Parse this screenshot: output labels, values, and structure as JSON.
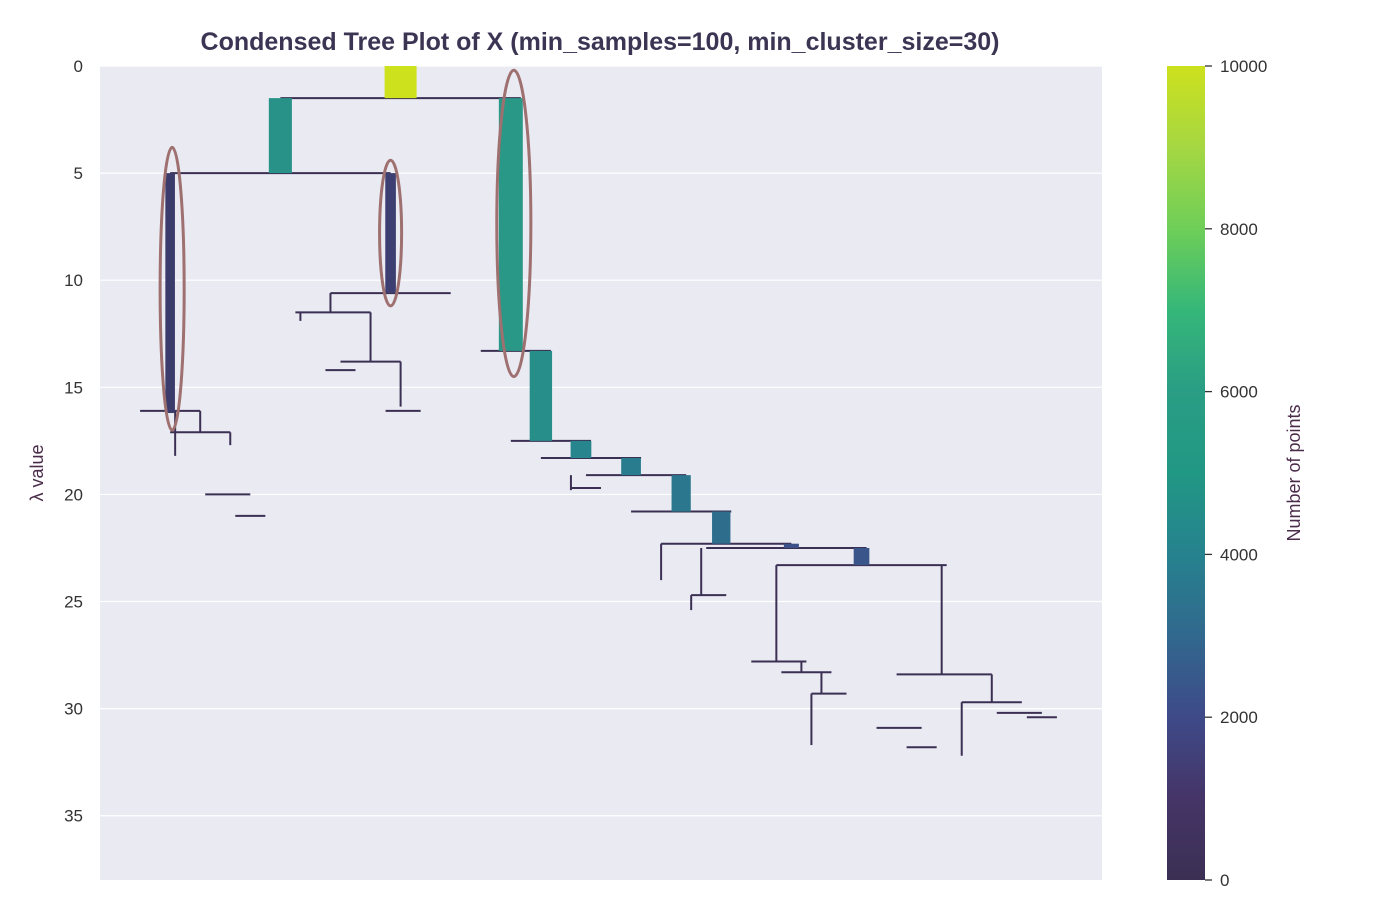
{
  "chart_data": {
    "type": "condensed-tree",
    "title": "Condensed Tree Plot of X (min_samples=100, min_cluster_size=30)",
    "ylabel": "λ value",
    "colorbar_label": "Number of points",
    "ylim": [
      0,
      38
    ],
    "y_inverted": true,
    "y_ticks": [
      0,
      5,
      10,
      15,
      20,
      25,
      30,
      35
    ],
    "colorbar_ticks": [
      0,
      2000,
      4000,
      6000,
      8000,
      10000
    ],
    "colorbar_range": [
      0,
      10000
    ],
    "colormap": "viridis",
    "grid": true,
    "background": "#eaeaf2",
    "highlight_color": "#9e7070",
    "branches": [
      {
        "x": 0.3,
        "top": 0,
        "bottom": 1.5,
        "points": 10000
      },
      {
        "x": 0.18,
        "top": 1.5,
        "bottom": 5.0,
        "points": 5200
      },
      {
        "x": 0.41,
        "top": 1.5,
        "bottom": 13.3,
        "points": 5600
      },
      {
        "x": 0.07,
        "top": 5.0,
        "bottom": 16.2,
        "points": 900
      },
      {
        "x": 0.29,
        "top": 5.0,
        "bottom": 10.6,
        "points": 1100
      },
      {
        "x": 0.44,
        "top": 13.3,
        "bottom": 17.5,
        "points": 4900
      },
      {
        "x": 0.48,
        "top": 17.5,
        "bottom": 18.3,
        "points": 4200
      },
      {
        "x": 0.53,
        "top": 18.3,
        "bottom": 19.1,
        "points": 3800
      },
      {
        "x": 0.58,
        "top": 19.1,
        "bottom": 20.8,
        "points": 3600
      },
      {
        "x": 0.62,
        "top": 20.8,
        "bottom": 22.3,
        "points": 3300
      },
      {
        "x": 0.76,
        "top": 22.5,
        "bottom": 23.3,
        "points": 2400
      },
      {
        "x": 0.69,
        "top": 22.3,
        "bottom": 22.5,
        "points": 2200
      }
    ],
    "leaves": [
      {
        "x": 0.075,
        "top": 16.1,
        "bottom": 18.2
      },
      {
        "x": 0.1,
        "top": 16.1,
        "bottom": 17.1
      },
      {
        "x": 0.13,
        "top": 17.1,
        "bottom": 17.7
      },
      {
        "x": 0.27,
        "top": 11.5,
        "bottom": 13.8
      },
      {
        "x": 0.23,
        "top": 10.6,
        "bottom": 11.5
      },
      {
        "x": 0.3,
        "top": 13.8,
        "bottom": 15.9
      },
      {
        "x": 0.2,
        "top": 11.5,
        "bottom": 11.9
      },
      {
        "x": 0.47,
        "top": 19.1,
        "bottom": 19.8
      },
      {
        "x": 0.56,
        "top": 22.3,
        "bottom": 24.0
      },
      {
        "x": 0.6,
        "top": 22.5,
        "bottom": 24.7
      },
      {
        "x": 0.59,
        "top": 24.7,
        "bottom": 25.4
      },
      {
        "x": 0.675,
        "top": 23.3,
        "bottom": 27.8
      },
      {
        "x": 0.84,
        "top": 23.3,
        "bottom": 28.4
      },
      {
        "x": 0.7,
        "top": 27.8,
        "bottom": 28.3
      },
      {
        "x": 0.72,
        "top": 28.3,
        "bottom": 29.3
      },
      {
        "x": 0.71,
        "top": 29.3,
        "bottom": 31.7
      },
      {
        "x": 0.89,
        "top": 28.4,
        "bottom": 29.7
      },
      {
        "x": 0.86,
        "top": 29.7,
        "bottom": 32.2
      }
    ],
    "splits": [
      {
        "y": 1.5,
        "x1": 0.18,
        "x2": 0.42
      },
      {
        "y": 5.0,
        "x1": 0.07,
        "x2": 0.29
      },
      {
        "y": 10.6,
        "x1": 0.23,
        "x2": 0.35
      },
      {
        "y": 11.5,
        "x1": 0.195,
        "x2": 0.27
      },
      {
        "y": 13.8,
        "x1": 0.24,
        "x2": 0.3
      },
      {
        "y": 14.2,
        "x1": 0.225,
        "x2": 0.255
      },
      {
        "y": 16.1,
        "x1": 0.04,
        "x2": 0.1
      },
      {
        "y": 16.1,
        "x1": 0.285,
        "x2": 0.32
      },
      {
        "y": 17.1,
        "x1": 0.07,
        "x2": 0.13
      },
      {
        "y": 20.0,
        "x1": 0.105,
        "x2": 0.15
      },
      {
        "y": 21.0,
        "x1": 0.135,
        "x2": 0.165
      },
      {
        "y": 13.3,
        "x1": 0.38,
        "x2": 0.45
      },
      {
        "y": 17.5,
        "x1": 0.41,
        "x2": 0.49
      },
      {
        "y": 18.3,
        "x1": 0.44,
        "x2": 0.54
      },
      {
        "y": 19.1,
        "x1": 0.485,
        "x2": 0.585
      },
      {
        "y": 19.7,
        "x1": 0.47,
        "x2": 0.5
      },
      {
        "y": 20.8,
        "x1": 0.53,
        "x2": 0.63
      },
      {
        "y": 22.3,
        "x1": 0.56,
        "x2": 0.69
      },
      {
        "y": 22.5,
        "x1": 0.605,
        "x2": 0.765
      },
      {
        "y": 23.3,
        "x1": 0.675,
        "x2": 0.845
      },
      {
        "y": 24.7,
        "x1": 0.59,
        "x2": 0.625
      },
      {
        "y": 27.8,
        "x1": 0.65,
        "x2": 0.705
      },
      {
        "y": 28.3,
        "x1": 0.68,
        "x2": 0.73
      },
      {
        "y": 29.3,
        "x1": 0.71,
        "x2": 0.745
      },
      {
        "y": 28.4,
        "x1": 0.795,
        "x2": 0.89
      },
      {
        "y": 29.7,
        "x1": 0.86,
        "x2": 0.92
      },
      {
        "y": 30.2,
        "x1": 0.895,
        "x2": 0.94
      },
      {
        "y": 30.4,
        "x1": 0.925,
        "x2": 0.955
      },
      {
        "y": 30.9,
        "x1": 0.775,
        "x2": 0.82
      },
      {
        "y": 31.8,
        "x1": 0.805,
        "x2": 0.835
      }
    ],
    "selected_clusters": [
      {
        "x": 0.072,
        "top": 3.8,
        "bottom": 17.0,
        "rx": 0.012
      },
      {
        "x": 0.29,
        "top": 4.4,
        "bottom": 11.2,
        "rx": 0.011
      },
      {
        "x": 0.413,
        "top": 0.2,
        "bottom": 14.5,
        "rx": 0.017
      }
    ]
  }
}
